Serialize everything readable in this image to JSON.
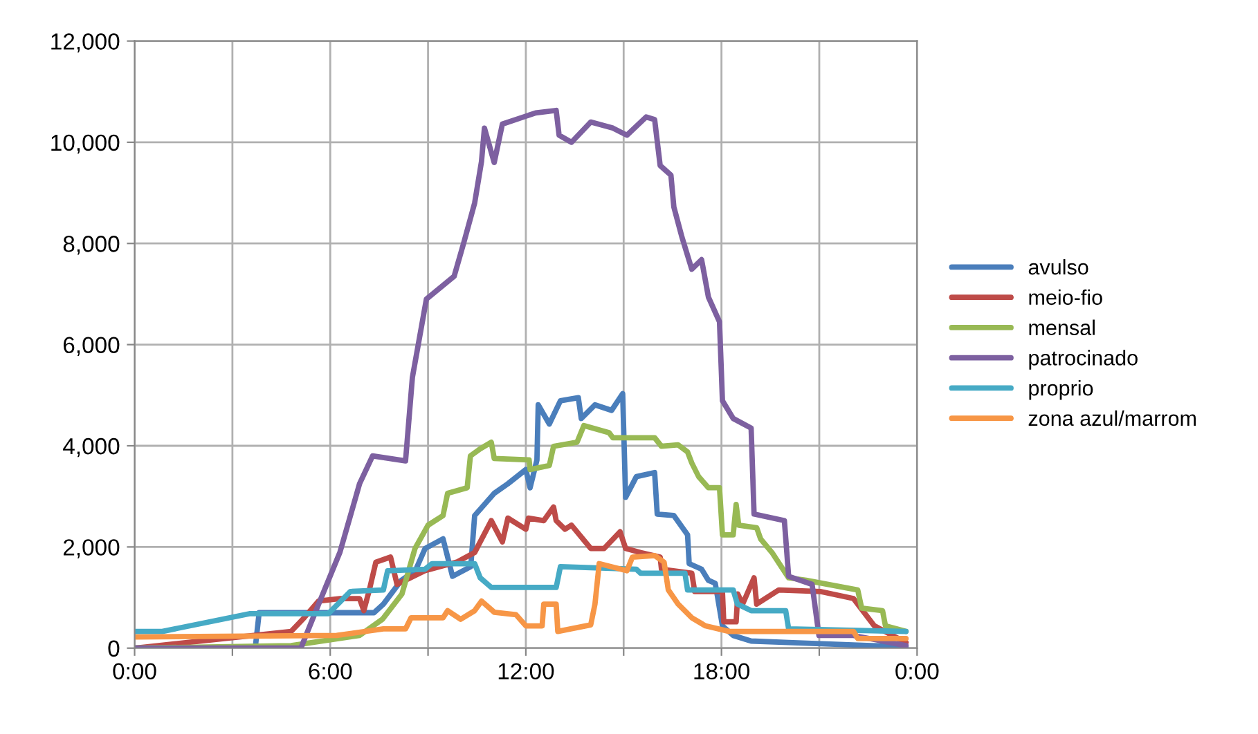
{
  "chart_data": {
    "type": "line",
    "legend": "right",
    "grid": true,
    "marker": "none",
    "line_style": "solid",
    "xlim": [
      0,
      24
    ],
    "ylim": [
      0,
      12000
    ],
    "xticks": [
      {
        "value": 0,
        "label": "0:00"
      },
      {
        "value": 3,
        "label": null
      },
      {
        "value": 6,
        "label": "6:00"
      },
      {
        "value": 9,
        "label": null
      },
      {
        "value": 12,
        "label": "12:00"
      },
      {
        "value": 15,
        "label": null
      },
      {
        "value": 18,
        "label": "18:00"
      },
      {
        "value": 21,
        "label": null
      },
      {
        "value": 24,
        "label": "0:00"
      }
    ],
    "yticks": [
      0,
      {
        "value": 2000,
        "label": "2,000"
      },
      {
        "value": 4000,
        "label": "4,000"
      },
      {
        "value": 6000,
        "label": "6,000"
      },
      {
        "value": 8000,
        "label": "8,000"
      },
      {
        "value": 10000,
        "label": "10,000"
      },
      {
        "value": 12000,
        "label": "12,000"
      }
    ],
    "series": [
      {
        "name": "avulso",
        "color": "#4a7ebb",
        "x": [
          0,
          3.7,
          3.82,
          7.34,
          7.63,
          8.18,
          8.61,
          8.91,
          9.46,
          9.75,
          10.31,
          10.43,
          11.03,
          11.45,
          12.0,
          12.13,
          12.34,
          12.38,
          12.55,
          12.72,
          13.06,
          13.61,
          13.7,
          14.12,
          14.63,
          14.97,
          15.06,
          15.39,
          15.95,
          16.03,
          16.54,
          16.96,
          17.01,
          17.39,
          17.6,
          17.81,
          18.03,
          18.36,
          18.91,
          20.06,
          22.6,
          23.66
        ],
        "values": [
          0,
          0,
          700,
          700,
          870,
          1340,
          1530,
          1970,
          2160,
          1420,
          1610,
          2620,
          3060,
          3250,
          3530,
          3170,
          3720,
          4810,
          4620,
          4430,
          4890,
          4950,
          4540,
          4810,
          4700,
          5030,
          2980,
          3390,
          3470,
          2650,
          2620,
          2240,
          1670,
          1560,
          1340,
          1280,
          440,
          250,
          140,
          110,
          50,
          30
        ]
      },
      {
        "name": "meio-fio",
        "color": "#be4b48",
        "x": [
          0,
          4.8,
          5.2,
          5.64,
          6.3,
          6.9,
          7.03,
          7.2,
          7.4,
          7.85,
          8.05,
          8.9,
          9.88,
          10.43,
          10.94,
          11.28,
          11.45,
          12.0,
          12.08,
          12.55,
          12.85,
          12.93,
          13.2,
          13.4,
          13.99,
          14.4,
          14.89,
          15.06,
          15.52,
          16.12,
          16.16,
          17.09,
          17.18,
          18.03,
          18.07,
          18.45,
          18.5,
          18.65,
          19.0,
          19.08,
          19.76,
          21.03,
          22.05,
          22.69,
          23.66
        ],
        "values": [
          0,
          330,
          600,
          930,
          980,
          980,
          740,
          1150,
          1700,
          1800,
          1260,
          1530,
          1700,
          1890,
          2520,
          2100,
          2570,
          2350,
          2570,
          2520,
          2790,
          2520,
          2350,
          2430,
          1970,
          1970,
          2300,
          1970,
          1890,
          1800,
          1560,
          1480,
          1120,
          1120,
          520,
          520,
          1070,
          870,
          1390,
          870,
          1150,
          1120,
          980,
          440,
          110
        ]
      },
      {
        "name": "mensal",
        "color": "#98b954",
        "x": [
          0,
          4.8,
          6.9,
          7.6,
          8.2,
          8.6,
          9.0,
          9.46,
          9.6,
          10.2,
          10.3,
          10.6,
          10.94,
          11.03,
          12.1,
          12.13,
          12.72,
          12.85,
          13.57,
          13.78,
          14.55,
          14.67,
          15.95,
          16.16,
          16.67,
          16.96,
          17.09,
          17.3,
          17.6,
          17.94,
          18.03,
          18.36,
          18.45,
          18.53,
          19.08,
          19.2,
          19.55,
          20.06,
          20.6,
          22.18,
          22.3,
          22.94,
          23.03,
          23.66
        ],
        "values": [
          0,
          50,
          250,
          570,
          1070,
          1970,
          2430,
          2620,
          3060,
          3170,
          3800,
          3940,
          4070,
          3750,
          3720,
          3530,
          3610,
          3990,
          4070,
          4400,
          4260,
          4160,
          4160,
          3990,
          4020,
          3880,
          3660,
          3390,
          3170,
          3170,
          2240,
          2240,
          2840,
          2430,
          2380,
          2160,
          1890,
          1390,
          1340,
          1150,
          790,
          740,
          440,
          330
        ]
      },
      {
        "name": "patrocinado",
        "color": "#7d60a0",
        "x": [
          0,
          5.1,
          5.6,
          6.3,
          6.9,
          7.3,
          8.31,
          8.52,
          8.95,
          9.8,
          10.09,
          10.43,
          10.64,
          10.73,
          11.03,
          11.28,
          12.3,
          12.93,
          13.02,
          13.4,
          13.99,
          14.67,
          15.1,
          15.69,
          15.95,
          16.12,
          16.45,
          16.54,
          16.79,
          17.09,
          17.39,
          17.6,
          17.94,
          18.03,
          18.36,
          18.91,
          19.0,
          19.93,
          20.06,
          20.78,
          20.99,
          22.05,
          23.66
        ],
        "values": [
          0,
          0,
          800,
          1900,
          3250,
          3800,
          3700,
          5350,
          6900,
          7350,
          8000,
          8800,
          9620,
          10280,
          9600,
          10360,
          10580,
          10630,
          10140,
          10000,
          10400,
          10280,
          10140,
          10500,
          10450,
          9540,
          9350,
          8720,
          8120,
          7490,
          7680,
          6940,
          6450,
          4890,
          4540,
          4350,
          2650,
          2520,
          1420,
          1260,
          250,
          250,
          50
        ]
      },
      {
        "name": "proprio",
        "color": "#46aac5",
        "x": [
          0,
          0.85,
          3.52,
          5.94,
          6.62,
          7.63,
          7.76,
          8.91,
          9.12,
          10.43,
          10.6,
          10.94,
          12.93,
          13.06,
          15.39,
          15.52,
          16.88,
          16.96,
          18.36,
          18.49,
          18.91,
          19.97,
          20.06,
          23.66
        ],
        "values": [
          330,
          330,
          680,
          680,
          1120,
          1150,
          1530,
          1560,
          1670,
          1670,
          1390,
          1200,
          1200,
          1610,
          1560,
          1480,
          1480,
          1150,
          1150,
          870,
          740,
          740,
          380,
          330
        ]
      },
      {
        "name": "zona azul/marrom",
        "color": "#f79646",
        "x": [
          0,
          6.2,
          7.63,
          8.31,
          8.48,
          9.46,
          9.6,
          10.0,
          10.43,
          10.64,
          11.03,
          11.7,
          12.0,
          12.5,
          12.55,
          12.93,
          12.98,
          13.99,
          14.12,
          14.25,
          15.1,
          15.27,
          15.95,
          16.24,
          16.37,
          16.67,
          17.09,
          17.51,
          18.24,
          22.05,
          22.18,
          23.66
        ],
        "values": [
          220,
          250,
          380,
          380,
          600,
          600,
          740,
          570,
          740,
          930,
          710,
          660,
          440,
          440,
          870,
          870,
          330,
          460,
          870,
          1670,
          1530,
          1800,
          1830,
          1700,
          1150,
          870,
          600,
          440,
          330,
          330,
          190,
          190
        ]
      }
    ]
  }
}
